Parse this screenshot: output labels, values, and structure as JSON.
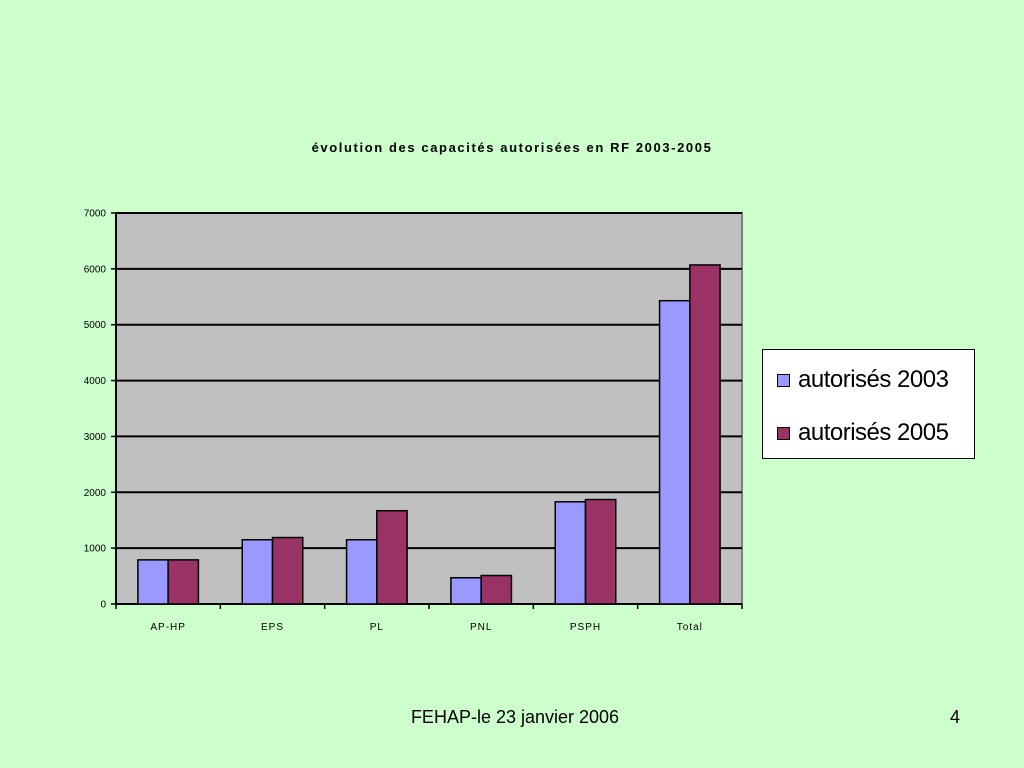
{
  "chart_data": {
    "type": "bar",
    "title": "évolution des capacités autorisées en RF 2003-2005",
    "categories": [
      "AP-HP",
      "EPS",
      "PL",
      "PNL",
      "PSPH",
      "Total"
    ],
    "series": [
      {
        "name": "autorisés 2003",
        "color": "#9999ff",
        "values": [
          790,
          1150,
          1150,
          470,
          1830,
          5430
        ]
      },
      {
        "name": "autorisés 2005",
        "color": "#993366",
        "values": [
          790,
          1190,
          1670,
          510,
          1870,
          6070
        ]
      }
    ],
    "ylim": [
      0,
      7000
    ],
    "yticks": [
      0,
      1000,
      2000,
      3000,
      4000,
      5000,
      6000,
      7000
    ],
    "xlabel": "",
    "ylabel": "",
    "grid": true,
    "plot_background": "#c0c0c0",
    "legend_position": "right"
  },
  "footer": {
    "text": "FEHAP-le 23 janvier 2006",
    "page": "4"
  }
}
